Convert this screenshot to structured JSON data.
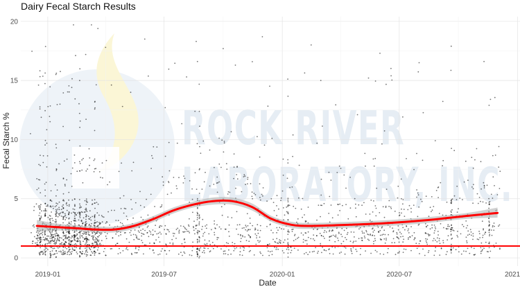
{
  "chart_data": {
    "type": "scatter",
    "title": "Dairy Fecal Starch Results",
    "xlabel": "Date",
    "ylabel": "Fecal Starch %",
    "x_ticks": [
      "2019-01",
      "2019-07",
      "2020-01",
      "2020-07",
      "2021-01"
    ],
    "x_range": [
      "2018-11-20",
      "2021-01-05"
    ],
    "y_ticks": [
      0,
      5,
      10,
      15,
      20
    ],
    "ylim": [
      -0.7,
      20.4
    ],
    "grid": true,
    "reference_line": {
      "y": 1.0,
      "color": "#ff0000"
    },
    "smooth": {
      "color": "#ff0000",
      "band_color": "#b3b3b3",
      "points": [
        {
          "x": "2018-12-15",
          "y": 2.7,
          "lo": 2.2,
          "hi": 3.2
        },
        {
          "x": "2019-01-15",
          "y": 2.6,
          "lo": 2.3,
          "hi": 2.9
        },
        {
          "x": "2019-02-15",
          "y": 2.5,
          "lo": 2.3,
          "hi": 2.75
        },
        {
          "x": "2019-03-15",
          "y": 2.4,
          "lo": 2.2,
          "hi": 2.65
        },
        {
          "x": "2019-04-15",
          "y": 2.4,
          "lo": 2.15,
          "hi": 2.65
        },
        {
          "x": "2019-05-15",
          "y": 2.7,
          "lo": 2.45,
          "hi": 2.95
        },
        {
          "x": "2019-06-15",
          "y": 3.3,
          "lo": 3.05,
          "hi": 3.55
        },
        {
          "x": "2019-07-15",
          "y": 4.0,
          "lo": 3.75,
          "hi": 4.25
        },
        {
          "x": "2019-08-15",
          "y": 4.5,
          "lo": 4.25,
          "hi": 4.75
        },
        {
          "x": "2019-09-15",
          "y": 4.8,
          "lo": 4.5,
          "hi": 5.1
        },
        {
          "x": "2019-10-15",
          "y": 4.8,
          "lo": 4.5,
          "hi": 5.1
        },
        {
          "x": "2019-11-15",
          "y": 4.3,
          "lo": 4.0,
          "hi": 4.6
        },
        {
          "x": "2019-12-15",
          "y": 3.3,
          "lo": 3.05,
          "hi": 3.55
        },
        {
          "x": "2020-01-15",
          "y": 2.8,
          "lo": 2.55,
          "hi": 3.05
        },
        {
          "x": "2020-02-15",
          "y": 2.7,
          "lo": 2.45,
          "hi": 2.95
        },
        {
          "x": "2020-04-15",
          "y": 2.8,
          "lo": 2.55,
          "hi": 3.05
        },
        {
          "x": "2020-06-15",
          "y": 2.95,
          "lo": 2.7,
          "hi": 3.2
        },
        {
          "x": "2020-08-15",
          "y": 3.2,
          "lo": 2.95,
          "hi": 3.45
        },
        {
          "x": "2020-10-15",
          "y": 3.55,
          "lo": 3.3,
          "hi": 3.8
        },
        {
          "x": "2020-12-01",
          "y": 3.8,
          "lo": 3.4,
          "hi": 4.25
        }
      ]
    },
    "sample_points": [
      {
        "x": "2018-12-05",
        "y": 10.5
      },
      {
        "x": "2019-01-20",
        "y": 13.0
      },
      {
        "x": "2019-02-10",
        "y": 19.7
      },
      {
        "x": "2019-03-01",
        "y": 17.2
      },
      {
        "x": "2019-03-10",
        "y": 19.7
      },
      {
        "x": "2019-03-20",
        "y": 19.4
      },
      {
        "x": "2019-04-01",
        "y": 17.8
      },
      {
        "x": "2019-05-10",
        "y": 14.0
      },
      {
        "x": "2019-06-01",
        "y": 18.5
      },
      {
        "x": "2019-08-05",
        "y": 15.3
      },
      {
        "x": "2019-08-20",
        "y": 18.3
      },
      {
        "x": "2019-08-22",
        "y": 16.6
      },
      {
        "x": "2019-10-01",
        "y": 17.7
      },
      {
        "x": "2019-10-20",
        "y": 16.3
      },
      {
        "x": "2019-12-01",
        "y": 18.7
      },
      {
        "x": "2020-02-15",
        "y": 18.0
      },
      {
        "x": "2020-03-01",
        "y": 15.0
      },
      {
        "x": "2020-06-01",
        "y": 17.3
      },
      {
        "x": "2020-08-01",
        "y": 16.5
      },
      {
        "x": "2020-09-20",
        "y": 17.9
      },
      {
        "x": "2020-11-10",
        "y": 16.6
      },
      {
        "x": "2020-11-20",
        "y": 13.4
      }
    ]
  }
}
